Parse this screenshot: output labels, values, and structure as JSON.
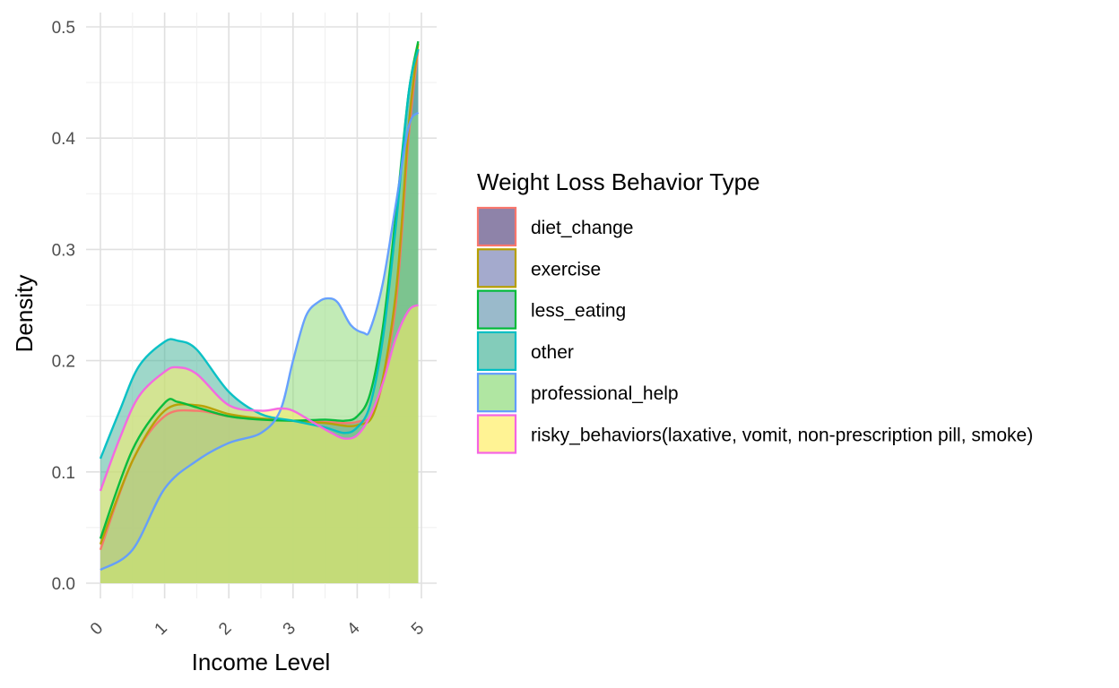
{
  "chart_data": {
    "type": "area",
    "chart_subtype": "density",
    "xlabel": "Income Level",
    "ylabel": "Density",
    "xlim": [
      0,
      5
    ],
    "ylim": [
      0,
      0.5
    ],
    "x_ticks": [
      "0",
      "1",
      "2",
      "3",
      "4",
      "5"
    ],
    "y_ticks": [
      "0.0",
      "0.1",
      "0.2",
      "0.3",
      "0.4",
      "0.5"
    ],
    "grid": true,
    "legend": {
      "title": "Weight Loss Behavior Type",
      "position": "right"
    },
    "series": [
      {
        "name": "diet_change",
        "line_color": "#F8766D",
        "fill_color": "#5E4E84",
        "x": [
          0,
          0.5,
          1,
          1.5,
          2,
          2.5,
          3,
          3.5,
          4,
          4.3,
          4.6,
          4.8,
          4.95
        ],
        "y": [
          0.03,
          0.11,
          0.15,
          0.155,
          0.15,
          0.148,
          0.146,
          0.145,
          0.145,
          0.16,
          0.25,
          0.4,
          0.48
        ]
      },
      {
        "name": "exercise",
        "line_color": "#B79F00",
        "fill_color": "#7E86B8",
        "x": [
          0,
          0.5,
          1,
          1.5,
          2,
          2.5,
          3,
          3.5,
          4,
          4.3,
          4.6,
          4.8,
          4.95
        ],
        "y": [
          0.035,
          0.11,
          0.155,
          0.16,
          0.152,
          0.148,
          0.146,
          0.144,
          0.142,
          0.16,
          0.26,
          0.41,
          0.485
        ]
      },
      {
        "name": "less_eating",
        "line_color": "#00BA38",
        "fill_color": "#6F9DB5",
        "x": [
          0,
          0.5,
          1,
          1.2,
          1.5,
          2,
          2.5,
          3,
          3.5,
          3.8,
          4,
          4.2,
          4.4,
          4.6,
          4.8,
          4.95
        ],
        "y": [
          0.04,
          0.12,
          0.162,
          0.163,
          0.158,
          0.15,
          0.147,
          0.146,
          0.147,
          0.146,
          0.15,
          0.17,
          0.23,
          0.33,
          0.44,
          0.487
        ]
      },
      {
        "name": "other",
        "line_color": "#00BFC4",
        "fill_color": "#4FB79C",
        "x": [
          0,
          0.3,
          0.6,
          1,
          1.2,
          1.5,
          2,
          2.5,
          3,
          3.5,
          3.8,
          4,
          4.2,
          4.4,
          4.6,
          4.8,
          4.95
        ],
        "y": [
          0.112,
          0.155,
          0.195,
          0.217,
          0.218,
          0.21,
          0.172,
          0.152,
          0.146,
          0.14,
          0.135,
          0.14,
          0.16,
          0.22,
          0.32,
          0.44,
          0.48
        ]
      },
      {
        "name": "professional_help",
        "line_color": "#619CFF",
        "fill_color": "#8FDB7A",
        "x": [
          0,
          0.5,
          1,
          1.5,
          2,
          2.5,
          2.8,
          3,
          3.2,
          3.4,
          3.55,
          3.7,
          3.9,
          4.1,
          4.2,
          4.4,
          4.6,
          4.8,
          4.95
        ],
        "y": [
          0.012,
          0.03,
          0.085,
          0.11,
          0.126,
          0.135,
          0.155,
          0.2,
          0.24,
          0.253,
          0.256,
          0.252,
          0.232,
          0.225,
          0.228,
          0.27,
          0.34,
          0.41,
          0.423
        ]
      },
      {
        "name": "risky_behaviors(laxative, vomit, non-prescription pill, smoke)",
        "line_color": "#F564E3",
        "fill_color": "#FFEE66",
        "x": [
          0,
          0.3,
          0.6,
          1,
          1.2,
          1.5,
          2,
          2.5,
          2.8,
          3,
          3.3,
          3.6,
          3.8,
          4,
          4.2,
          4.4,
          4.6,
          4.8,
          4.95
        ],
        "y": [
          0.083,
          0.13,
          0.168,
          0.19,
          0.194,
          0.188,
          0.16,
          0.155,
          0.157,
          0.155,
          0.145,
          0.135,
          0.13,
          0.133,
          0.15,
          0.18,
          0.22,
          0.245,
          0.25
        ]
      }
    ]
  }
}
